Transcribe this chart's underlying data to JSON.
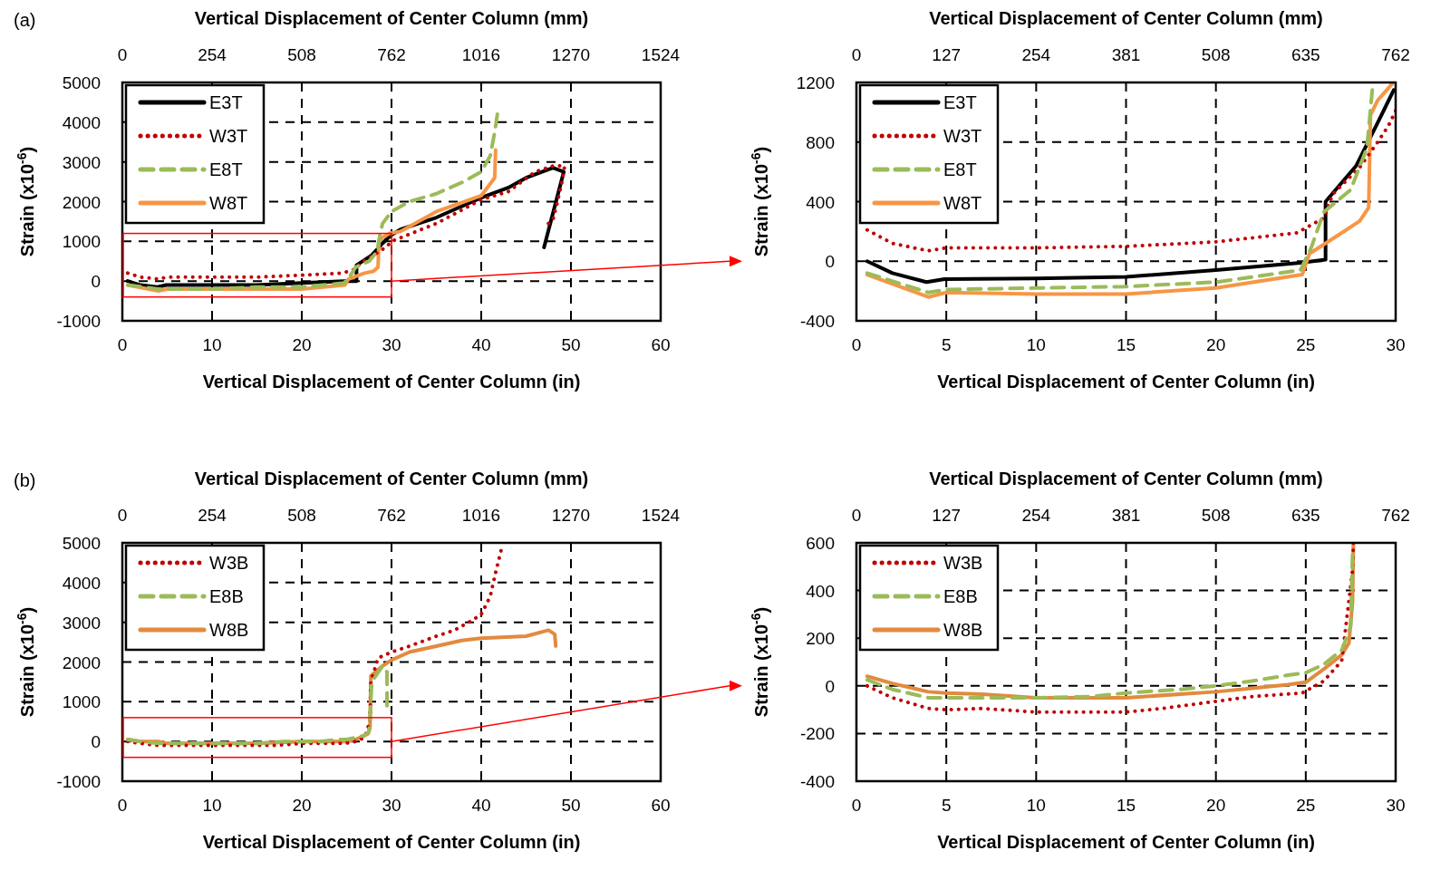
{
  "chart_data": [
    {
      "type": "line",
      "annotations": [
        "(a)"
      ],
      "xlabel": "Vertical Displacement of Center Column (in)",
      "x2label": "Vertical Displacement of Center Column (mm)",
      "ylabel": "Strain (x10$^{-6}$)",
      "xlim": [
        0,
        60
      ],
      "xticks": [
        0,
        10,
        20,
        30,
        40,
        50,
        60
      ],
      "x2lim": [
        0,
        1524
      ],
      "x2ticks": [
        0,
        254,
        508,
        762,
        1016,
        1270,
        1524
      ],
      "ylim": [
        -1000,
        5000
      ],
      "yticks": [
        -1000,
        0,
        1000,
        2000,
        3000,
        4000,
        5000
      ],
      "grid": true,
      "legend": "top left",
      "series": [
        {
          "name": "E3T",
          "color": "#000000",
          "line_style": "solid",
          "x": [
            0.6,
            2,
            3.9,
            4.9,
            10,
            15,
            20,
            24.7,
            26.1,
            26.1,
            27.8,
            29,
            29.9,
            31,
            35,
            40,
            43,
            45,
            48,
            49.2,
            47.0
          ],
          "values": [
            0,
            -100,
            -150,
            -100,
            -100,
            -100,
            -50,
            0,
            0,
            400,
            650,
            950,
            1150,
            1300,
            1600,
            2100,
            2350,
            2600,
            2850,
            2750,
            850
          ]
        },
        {
          "name": "W3T",
          "color": "#c00000",
          "line_style": "dotted",
          "x": [
            0.6,
            2,
            4,
            5,
            10,
            15,
            20,
            24.5,
            26,
            26.5,
            28,
            29,
            29.6,
            30,
            35,
            40,
            43,
            46,
            48,
            49.3,
            49,
            48.5,
            48,
            47.5
          ],
          "values": [
            200,
            100,
            50,
            100,
            100,
            100,
            150,
            200,
            300,
            450,
            650,
            800,
            900,
            1000,
            1450,
            2050,
            2250,
            2750,
            2900,
            2900,
            2500,
            2000,
            1550,
            1450
          ]
        },
        {
          "name": "E8T",
          "color": "#9bbb59",
          "line_style": "dashed",
          "x": [
            0.6,
            4,
            5,
            10,
            15,
            20,
            24.7,
            25.3,
            26,
            27.5,
            28.4,
            28.7,
            29,
            30,
            32,
            35,
            38,
            40,
            41,
            41.5,
            41.8
          ],
          "values": [
            -100,
            -200,
            -200,
            -200,
            -150,
            -150,
            -50,
            100,
            350,
            500,
            750,
            1150,
            1450,
            1750,
            2000,
            2200,
            2500,
            2750,
            3150,
            3750,
            4200
          ]
        },
        {
          "name": "W8T",
          "color": "#f79646",
          "line_style": "solid",
          "x": [
            0.6,
            4,
            5,
            10,
            15,
            20,
            24.8,
            25.2,
            27,
            28,
            28.5,
            28.6,
            29,
            29.8,
            31,
            35,
            40,
            41.5,
            41.6
          ],
          "values": [
            -100,
            -250,
            -200,
            -200,
            -200,
            -200,
            -100,
            50,
            200,
            250,
            350,
            1000,
            1100,
            1200,
            1250,
            1750,
            2150,
            2600,
            3300
          ]
        }
      ]
    },
    {
      "type": "line",
      "xlabel": "Vertical Displacement of Center Column (in)",
      "x2label": "Vertical Displacement of Center Column (mm)",
      "ylabel": "Strain (x10$^{-6}$)",
      "xlim": [
        0,
        30
      ],
      "xticks": [
        0,
        5,
        10,
        15,
        20,
        25,
        30
      ],
      "x2lim": [
        0,
        762
      ],
      "x2ticks": [
        0,
        127,
        254,
        381,
        508,
        635,
        762
      ],
      "ylim": [
        -400,
        1200
      ],
      "yticks": [
        -400,
        0,
        400,
        800,
        1200
      ],
      "grid": true,
      "legend": "top left",
      "series": [
        {
          "name": "E3T",
          "color": "#000000",
          "line_style": "solid",
          "x": [
            0.6,
            2,
            3.9,
            4.9,
            10,
            15,
            20,
            24.7,
            26.1,
            26.1,
            27.8,
            29,
            29.9
          ],
          "values": [
            0,
            -80,
            -140,
            -120,
            -115,
            -105,
            -60,
            -10,
            10,
            400,
            640,
            930,
            1150
          ]
        },
        {
          "name": "W3T",
          "color": "#c00000",
          "line_style": "dotted",
          "x": [
            0.6,
            2,
            4,
            5,
            10,
            15,
            20,
            24.5,
            26,
            26.5,
            28,
            29,
            29.6,
            30
          ],
          "values": [
            210,
            120,
            70,
            90,
            90,
            100,
            130,
            190,
            290,
            450,
            630,
            800,
            910,
            1010
          ]
        },
        {
          "name": "E8T",
          "color": "#9bbb59",
          "line_style": "dashed",
          "x": [
            0.6,
            4,
            5,
            10,
            15,
            20,
            24.7,
            25.3,
            26,
            27.5,
            28.4,
            28.7
          ],
          "values": [
            -80,
            -210,
            -190,
            -180,
            -170,
            -140,
            -60,
            90,
            330,
            480,
            760,
            1150
          ]
        },
        {
          "name": "W8T",
          "color": "#f79646",
          "line_style": "solid",
          "x": [
            0.6,
            4,
            5,
            10,
            15,
            20,
            24.8,
            25.2,
            27,
            28,
            28.5,
            28.6,
            29,
            29.8
          ],
          "values": [
            -90,
            -240,
            -210,
            -220,
            -220,
            -180,
            -90,
            50,
            190,
            270,
            360,
            980,
            1080,
            1190
          ]
        }
      ]
    },
    {
      "type": "line",
      "annotations": [
        "(b)"
      ],
      "xlabel": "Vertical Displacement of Center Column (in)",
      "x2label": "Vertical Displacement of Center Column (mm)",
      "ylabel": "Strain (x10$^{-6}$)",
      "xlim": [
        0,
        60
      ],
      "xticks": [
        0,
        10,
        20,
        30,
        40,
        50,
        60
      ],
      "x2lim": [
        0,
        1524
      ],
      "x2ticks": [
        0,
        254,
        508,
        762,
        1016,
        1270,
        1524
      ],
      "ylim": [
        -1000,
        5000
      ],
      "yticks": [
        -1000,
        0,
        1000,
        2000,
        3000,
        4000,
        5000
      ],
      "grid": true,
      "legend": "top left",
      "series": [
        {
          "name": "W3B",
          "color": "#c00000",
          "line_style": "dotted",
          "x": [
            0.6,
            2,
            4,
            5,
            7,
            10,
            15,
            17,
            20,
            22,
            24.8,
            26,
            27,
            27.6,
            27.7,
            28.5,
            30,
            32,
            35,
            37,
            39,
            40,
            41,
            41.6,
            42.2
          ],
          "values": [
            0,
            -50,
            -100,
            -100,
            -100,
            -100,
            -100,
            -100,
            -50,
            -50,
            -50,
            0,
            100,
            500,
            1500,
            2100,
            2250,
            2400,
            2650,
            2800,
            3050,
            3200,
            3650,
            4250,
            4800
          ]
        },
        {
          "name": "E8B",
          "color": "#9bbb59",
          "line_style": "dashed",
          "x": [
            0.6,
            2,
            4,
            5,
            10,
            13,
            15,
            18,
            20,
            22,
            24,
            25,
            26,
            27,
            27.5,
            27.6,
            27.8,
            29,
            29.5,
            29.5
          ],
          "values": [
            50,
            0,
            -50,
            -50,
            -50,
            -50,
            -50,
            0,
            0,
            0,
            50,
            50,
            100,
            150,
            250,
            550,
            1500,
            1900,
            1750,
            900
          ]
        },
        {
          "name": "W8B",
          "color": "#e28a3e",
          "line_style": "solid",
          "x": [
            0.6,
            2,
            4,
            5,
            7,
            10,
            15,
            20,
            22,
            24,
            25,
            26,
            27,
            27.4,
            27.6,
            27.7,
            29,
            30,
            32,
            35,
            38,
            40,
            45,
            47.5,
            48.2,
            48.3
          ],
          "values": [
            50,
            0,
            0,
            -50,
            -50,
            -50,
            -50,
            0,
            0,
            0,
            0,
            50,
            150,
            200,
            350,
            1650,
            1900,
            2050,
            2250,
            2400,
            2550,
            2600,
            2650,
            2800,
            2700,
            2400
          ]
        }
      ]
    },
    {
      "type": "line",
      "xlabel": "Vertical Displacement of Center Column (in)",
      "x2label": "Vertical Displacement of Center Column (mm)",
      "ylabel": "Strain (x10$^{-6}$)",
      "xlim": [
        0,
        30
      ],
      "xticks": [
        0,
        5,
        10,
        15,
        20,
        25,
        30
      ],
      "x2lim": [
        0,
        762
      ],
      "x2ticks": [
        0,
        127,
        254,
        381,
        508,
        635,
        762
      ],
      "ylim": [
        -400,
        600
      ],
      "yticks": [
        -400,
        -200,
        0,
        200,
        400,
        600
      ],
      "grid": true,
      "legend": "top left",
      "series": [
        {
          "name": "W3B",
          "color": "#c00000",
          "line_style": "dotted",
          "x": [
            0.6,
            2,
            4,
            5,
            7,
            10,
            15,
            17,
            20,
            22,
            24.8,
            26,
            27,
            27.6,
            27.65
          ],
          "values": [
            0,
            -50,
            -95,
            -100,
            -95,
            -110,
            -110,
            -95,
            -65,
            -45,
            -30,
            20,
            105,
            485,
            600
          ]
        },
        {
          "name": "E8B",
          "color": "#9bbb59",
          "line_style": "dashed",
          "x": [
            0.6,
            2,
            4,
            5,
            10,
            13,
            15,
            18,
            20,
            22,
            24,
            25,
            26,
            27,
            27.5,
            27.6
          ],
          "values": [
            25,
            -15,
            -50,
            -50,
            -50,
            -45,
            -30,
            -15,
            0,
            20,
            45,
            55,
            90,
            150,
            250,
            550
          ]
        },
        {
          "name": "W8B",
          "color": "#e28a3e",
          "line_style": "solid",
          "x": [
            0.6,
            2,
            4,
            5,
            7,
            10,
            15,
            20,
            22,
            24,
            25,
            26,
            27,
            27.4,
            27.6,
            27.65
          ],
          "values": [
            40,
            10,
            -25,
            -30,
            -35,
            -50,
            -50,
            -25,
            -10,
            5,
            15,
            70,
            130,
            180,
            350,
            600
          ]
        }
      ]
    }
  ]
}
